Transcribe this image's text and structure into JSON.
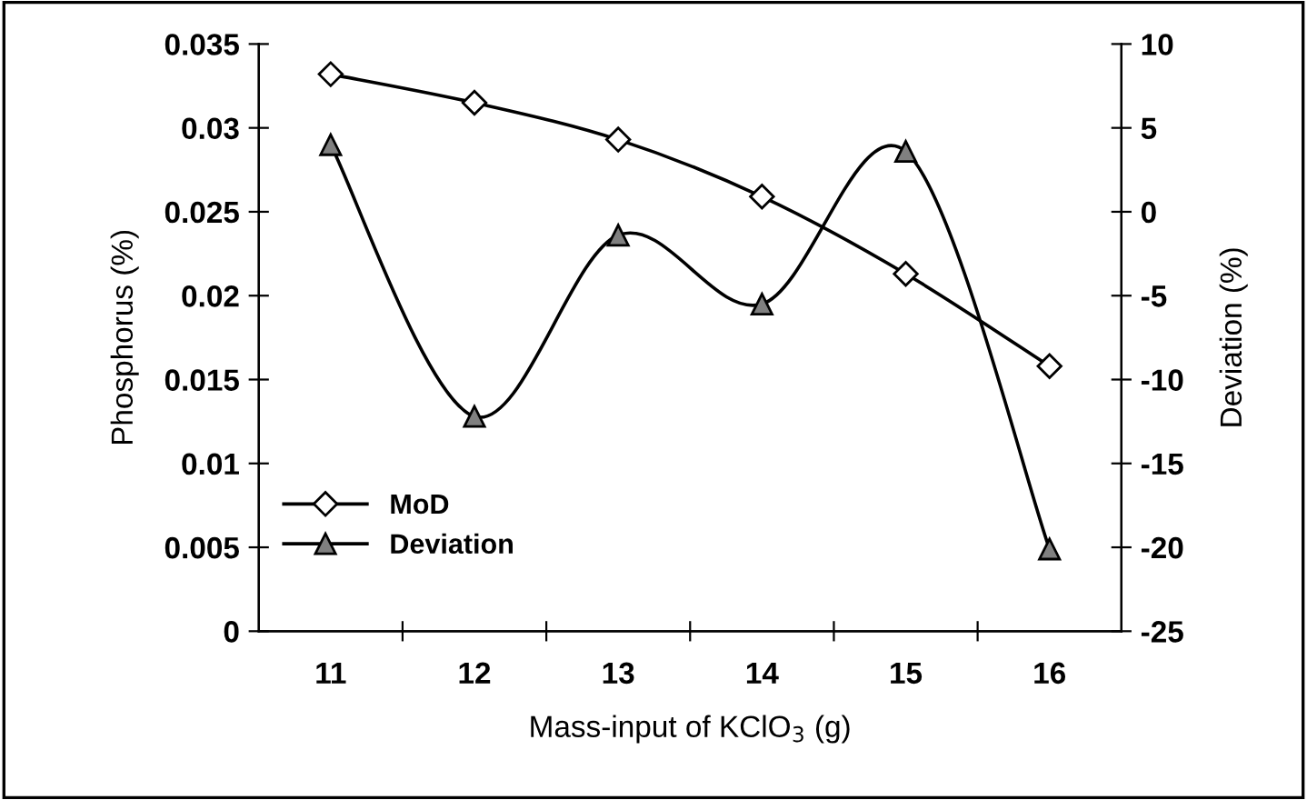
{
  "chart_data": {
    "type": "line",
    "xlabel": "Mass-input of KClO$_{3}$ (g)",
    "ylabel": "Phosphorus (%)",
    "y2label": "Deviation (%)",
    "categories": [
      "11",
      "12",
      "13",
      "14",
      "15",
      "16"
    ],
    "series": [
      {
        "name": "MoD",
        "color": "#ffffff",
        "marker": "diamond",
        "values": [
          0.0332,
          0.0315,
          0.0293,
          0.0259,
          0.0213,
          0.0158
        ]
      },
      {
        "name": "Deviation",
        "color": "#808080",
        "marker": "triangle",
        "axis": "y2",
        "values": [
          4.0,
          -12.2,
          -1.4,
          -5.5,
          3.6,
          -20.1
        ]
      }
    ],
    "ylim": [
      0,
      0.035
    ],
    "yticks": [
      0,
      0.005,
      0.01,
      0.015,
      0.02,
      0.025,
      0.03,
      0.035
    ],
    "y2lim": [
      -25,
      10
    ],
    "y2ticks": [
      -25,
      -20,
      -15,
      -10,
      -5,
      0,
      5,
      10
    ],
    "grid": false,
    "legend": "bottom left",
    "line_style": "solid"
  }
}
